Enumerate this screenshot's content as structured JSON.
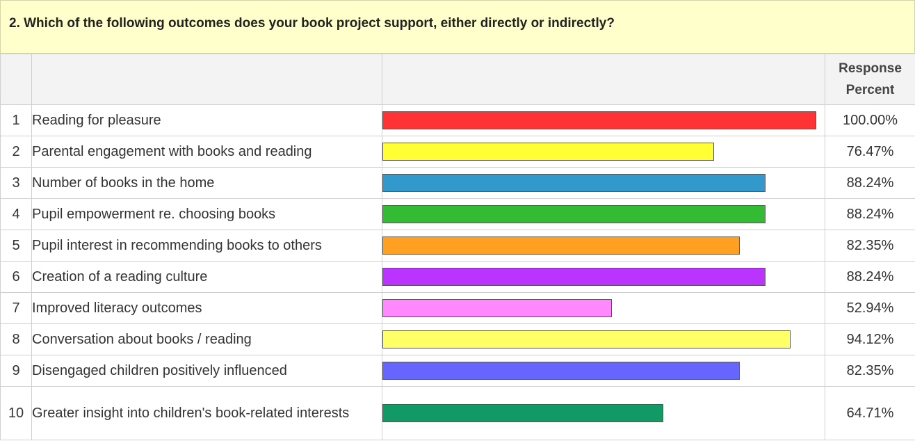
{
  "question": "2. Which of the following outcomes does your book project support, either directly or indirectly?",
  "header": {
    "response_percent_line1": "Response",
    "response_percent_line2": "Percent"
  },
  "chart_data": {
    "type": "bar",
    "orientation": "horizontal",
    "title": "2. Which of the following outcomes does your book project support, either directly or indirectly?",
    "value_unit": "percent",
    "xlim": [
      0,
      100
    ],
    "categories": [
      "Reading for pleasure",
      "Parental engagement with books and reading",
      "Number of books in the home",
      "Pupil empowerment re. choosing books",
      "Pupil interest in recommending books to others",
      "Creation of a reading culture",
      "Improved literacy outcomes",
      "Conversation about books / reading",
      "Disengaged children positively influenced",
      "Greater insight into children's book-related interests"
    ],
    "values": [
      100.0,
      76.47,
      88.24,
      88.24,
      82.35,
      88.24,
      52.94,
      94.12,
      82.35,
      64.71
    ],
    "rows": [
      {
        "num": "1",
        "label": "Reading for pleasure",
        "value": 100.0,
        "percent_label": "100.00%",
        "color": "#ff3333"
      },
      {
        "num": "2",
        "label": "Parental engagement with books and reading",
        "value": 76.47,
        "percent_label": "76.47%",
        "color": "#ffff33"
      },
      {
        "num": "3",
        "label": "Number of books in the home",
        "value": 88.24,
        "percent_label": "88.24%",
        "color": "#3399cc"
      },
      {
        "num": "4",
        "label": "Pupil empowerment re. choosing books",
        "value": 88.24,
        "percent_label": "88.24%",
        "color": "#33bb33"
      },
      {
        "num": "5",
        "label": "Pupil interest in recommending books to others",
        "value": 82.35,
        "percent_label": "82.35%",
        "color": "#ffa022"
      },
      {
        "num": "6",
        "label": "Creation of a reading culture",
        "value": 88.24,
        "percent_label": "88.24%",
        "color": "#bb33ff"
      },
      {
        "num": "7",
        "label": "Improved literacy outcomes",
        "value": 52.94,
        "percent_label": "52.94%",
        "color": "#ff88ff"
      },
      {
        "num": "8",
        "label": "Conversation about books / reading",
        "value": 94.12,
        "percent_label": "94.12%",
        "color": "#ffff66"
      },
      {
        "num": "9",
        "label": "Disengaged children positively influenced",
        "value": 82.35,
        "percent_label": "82.35%",
        "color": "#6666ff"
      },
      {
        "num": "10",
        "label": "Greater insight into children's book-related interests",
        "value": 64.71,
        "percent_label": "64.71%",
        "color": "#119966"
      }
    ]
  }
}
